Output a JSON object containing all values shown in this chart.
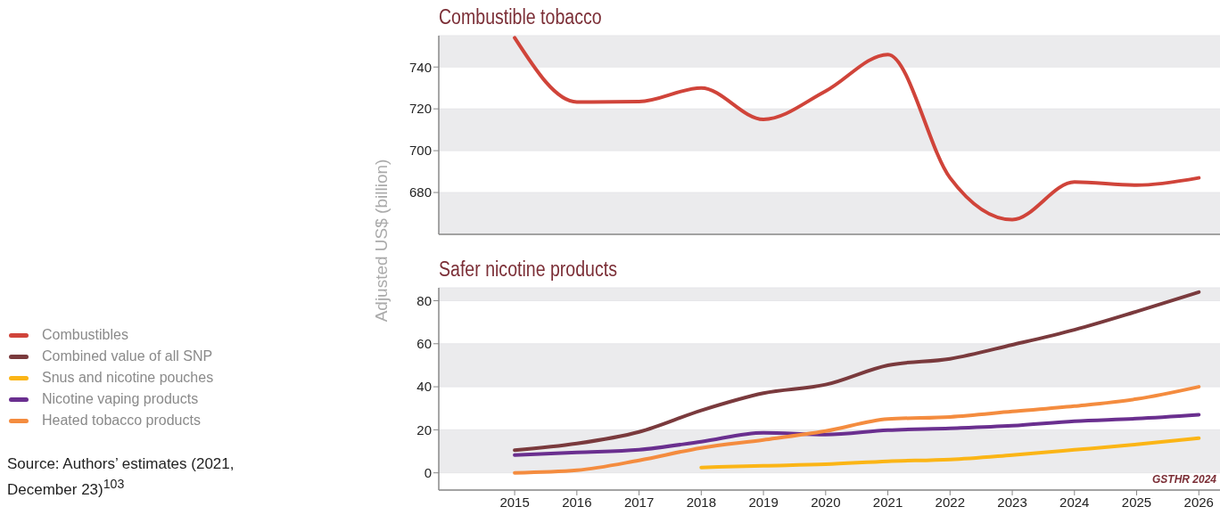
{
  "chart_data": [
    {
      "type": "line",
      "title": "Combustible tobacco",
      "ylabel": "Adjusted US$ (billion)",
      "categories": [
        "2015",
        "2016",
        "2017",
        "2018",
        "2019",
        "2020",
        "2021",
        "2022",
        "2023",
        "2024",
        "2025",
        "2026"
      ],
      "series": [
        {
          "name": "Combustibles",
          "color": "#d0443a",
          "values": [
            754,
            723.3,
            723.5,
            730,
            715,
            728.5,
            746,
            687,
            667,
            685,
            683.5,
            687
          ]
        }
      ],
      "ylim": [
        660,
        755
      ],
      "yticks": [
        680,
        700,
        720,
        740
      ],
      "grid": "y",
      "legend": "left",
      "tick_labels": "y",
      "marker": "none",
      "line_style": "solid"
    },
    {
      "type": "line",
      "title": "Safer nicotine products",
      "categories": [
        "2015",
        "2016",
        "2017",
        "2018",
        "2019",
        "2020",
        "2021",
        "2022",
        "2023",
        "2024",
        "2025",
        "2026"
      ],
      "series": [
        {
          "name": "Combined value of all SNP",
          "color": "#7a3a3d",
          "values": [
            10.5,
            13.6,
            19,
            29,
            37,
            41,
            50,
            53,
            59.5,
            66.5,
            75,
            84
          ]
        },
        {
          "name": "Snus and nicotine pouches",
          "color": "#fbb516",
          "values": [
            null,
            null,
            null,
            2.5,
            3.3,
            4,
            5.4,
            6.2,
            8.3,
            10.7,
            13.2,
            16.1
          ]
        },
        {
          "name": "Nicotine vaping products",
          "color": "#6a2f8f",
          "values": [
            8.3,
            9.5,
            10.7,
            14.5,
            18.6,
            17.8,
            19.8,
            20.7,
            21.9,
            24,
            25.2,
            27
          ]
        },
        {
          "name": "Heated tobacco products",
          "color": "#f48c3f",
          "values": [
            0,
            1.2,
            5.8,
            11.6,
            15.3,
            19.4,
            25,
            26,
            28.5,
            31,
            34.3,
            40
          ]
        }
      ],
      "ylim": [
        -8,
        86
      ],
      "yticks": [
        0,
        20,
        40,
        60,
        80
      ],
      "grid": "y",
      "legend": "left",
      "marker": "none",
      "line_style": "solid",
      "annotations": [
        "GSTHR 2024",
        "Source: Authors’ estimates (2021, December 23)$^{103}$"
      ]
    }
  ]
}
